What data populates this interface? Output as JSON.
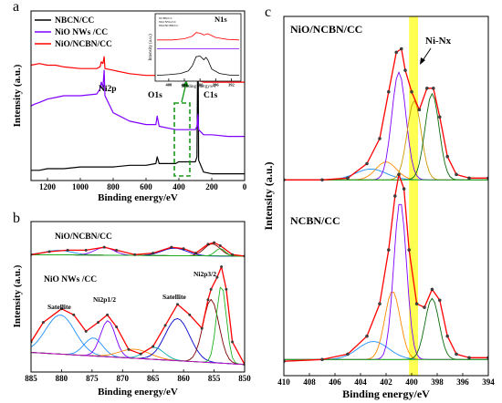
{
  "panels": {
    "a": {
      "letter": "a"
    },
    "b": {
      "letter": "b"
    },
    "c": {
      "letter": "c"
    }
  },
  "chart_data": [
    {
      "id": "a",
      "type": "line",
      "title": "",
      "xlabel": "Binding energy/eV",
      "ylabel": "Intensity (a.u.)",
      "xlim": [
        1300,
        0
      ],
      "x_ticks": [
        1200,
        1000,
        800,
        600,
        400,
        200,
        0
      ],
      "legend": {
        "placement": "top-left",
        "entries": [
          {
            "name": "NBCN/CC",
            "color": "#000000"
          },
          {
            "name": "NiO NWs /CC",
            "color": "#7f00ff"
          },
          {
            "name": "NiO/NCBN/CC",
            "color": "#ff0000"
          }
        ]
      },
      "annotations": [
        "Ni2p",
        "O1s",
        "C1s"
      ],
      "series": [
        {
          "name": "NBCN/CC",
          "color": "#000000",
          "x": [
            1300,
            1250,
            1200,
            1150,
            1100,
            1000,
            900,
            800,
            700,
            600,
            540,
            532,
            520,
            420,
            402,
            390,
            300,
            290,
            284,
            280,
            250,
            200,
            100,
            0
          ],
          "y": [
            0.06,
            0.06,
            0.07,
            0.07,
            0.07,
            0.08,
            0.08,
            0.08,
            0.09,
            0.09,
            0.1,
            0.14,
            0.1,
            0.1,
            0.11,
            0.11,
            0.11,
            0.14,
            0.96,
            0.12,
            0.05,
            0.04,
            0.04,
            0.04
          ]
        },
        {
          "name": "NiO NWs /CC",
          "color": "#7f00ff",
          "x": [
            1300,
            1280,
            1250,
            1200,
            1150,
            1100,
            1000,
            900,
            880,
            872,
            862,
            855,
            850,
            800,
            700,
            600,
            540,
            532,
            520,
            420,
            300,
            290,
            284,
            280,
            250,
            200,
            100,
            0
          ],
          "y": [
            0.44,
            0.45,
            0.46,
            0.48,
            0.49,
            0.5,
            0.5,
            0.51,
            0.54,
            0.58,
            0.55,
            0.65,
            0.5,
            0.4,
            0.35,
            0.33,
            0.33,
            0.38,
            0.32,
            0.3,
            0.3,
            0.32,
            0.39,
            0.3,
            0.27,
            0.27,
            0.26,
            0.26
          ]
        },
        {
          "name": "NiO/NCBN/CC",
          "color": "#ff0000",
          "x": [
            1300,
            1250,
            1200,
            1150,
            1100,
            1000,
            900,
            880,
            872,
            862,
            855,
            850,
            800,
            700,
            600,
            540,
            532,
            520,
            420,
            402,
            390,
            300,
            290,
            284,
            280,
            250,
            200,
            100,
            0
          ],
          "y": [
            0.68,
            0.69,
            0.68,
            0.68,
            0.67,
            0.66,
            0.66,
            0.67,
            0.7,
            0.69,
            0.73,
            0.66,
            0.65,
            0.63,
            0.62,
            0.62,
            0.65,
            0.61,
            0.6,
            0.61,
            0.6,
            0.59,
            0.6,
            0.65,
            0.59,
            0.58,
            0.58,
            0.58,
            0.58
          ]
        }
      ],
      "inset": {
        "label": "N1s",
        "xlabel": "Binding energy/eV",
        "ylabel": "Intensity (a.u.)",
        "xlim": [
          411,
          390
        ],
        "x_ticks": [
          408,
          404,
          400,
          396,
          392
        ],
        "legend": [
          "NCBN/CC",
          "NiO NWs/CC",
          "NiO/NCBN/CC"
        ],
        "series": [
          {
            "name": "NCBN/CC",
            "color": "#000000",
            "x": [
              411,
              408,
              405,
              403,
              402,
              401,
              400,
              399,
              398.5,
              398,
              397,
              395,
              392,
              390
            ],
            "y": [
              0.05,
              0.06,
              0.08,
              0.12,
              0.2,
              0.35,
              0.36,
              0.3,
              0.34,
              0.3,
              0.15,
              0.08,
              0.05,
              0.05
            ]
          },
          {
            "name": "NiO NWs/CC",
            "color": "#7f00ff",
            "x": [
              411,
              400,
              390
            ],
            "y": [
              0.48,
              0.48,
              0.48
            ]
          },
          {
            "name": "NiO/NCBN/CC",
            "color": "#ff0000",
            "x": [
              411,
              407,
              404,
              402,
              401,
              400,
              399,
              398,
              396,
              393,
              390
            ],
            "y": [
              0.62,
              0.62,
              0.64,
              0.68,
              0.74,
              0.73,
              0.7,
              0.72,
              0.66,
              0.63,
              0.62
            ]
          }
        ]
      }
    },
    {
      "id": "b",
      "type": "line",
      "title": "",
      "xlabel": "Binding energy/eV",
      "ylabel": "Intensity (a.u.)",
      "xlim": [
        885,
        850
      ],
      "x_ticks": [
        885,
        880,
        875,
        870,
        865,
        860,
        855,
        850
      ],
      "sample_labels": [
        "NiO/NCBN/CC",
        "NiO NWs /CC"
      ],
      "peak_labels": [
        "Satellite",
        "Ni2p1/2",
        "Satellite",
        "Ni2p3/2"
      ],
      "series": [
        {
          "name": "NiO/NCBN/CC",
          "color": "#ff0000",
          "x": [
            885,
            882,
            879,
            876,
            873,
            871,
            868,
            865,
            862,
            860,
            858,
            856,
            855,
            854,
            852,
            850
          ],
          "y": [
            0.78,
            0.8,
            0.81,
            0.81,
            0.83,
            0.81,
            0.78,
            0.79,
            0.83,
            0.82,
            0.79,
            0.85,
            0.86,
            0.84,
            0.78,
            0.77
          ]
        },
        {
          "name": "NiO NWs /CC",
          "color": "#ff0000",
          "x": [
            885,
            883,
            880,
            878,
            876,
            874,
            872.5,
            871,
            869,
            867,
            865,
            863,
            861,
            859,
            857,
            856,
            855.5,
            854.5,
            853.8,
            853,
            852,
            850
          ],
          "y": [
            0.2,
            0.33,
            0.42,
            0.38,
            0.27,
            0.33,
            0.38,
            0.3,
            0.15,
            0.12,
            0.17,
            0.31,
            0.45,
            0.38,
            0.29,
            0.48,
            0.55,
            0.63,
            0.7,
            0.55,
            0.2,
            0.05
          ]
        }
      ]
    },
    {
      "id": "c",
      "type": "line",
      "title": "",
      "xlabel": "Binding energy/eV",
      "ylabel": "Intensity (a.u.)",
      "xlim": [
        410,
        394
      ],
      "x_ticks": [
        410,
        408,
        406,
        404,
        402,
        400,
        398,
        396,
        394
      ],
      "sample_labels": [
        "NiO/NCBN/CC",
        "NCBN/CC"
      ],
      "annotation": "Ni-Nx",
      "highlight_band": [
        400.2,
        399.5
      ],
      "series": [
        {
          "name": "NiO/NCBN/CC",
          "color": "#ff0000",
          "x": [
            410,
            407,
            405,
            403.5,
            402.5,
            401.8,
            401.2,
            400.8,
            400.5,
            400.0,
            399.4,
            398.8,
            398.3,
            397.8,
            397.2,
            396.5,
            395.5,
            394
          ],
          "y": [
            0.545,
            0.545,
            0.55,
            0.59,
            0.66,
            0.79,
            0.9,
            0.91,
            0.85,
            0.79,
            0.74,
            0.8,
            0.8,
            0.72,
            0.61,
            0.56,
            0.55,
            0.55
          ]
        },
        {
          "name": "NCBN/CC",
          "color": "#ff0000",
          "x": [
            410,
            407,
            405,
            403.5,
            402.5,
            401.8,
            401.3,
            401.0,
            400.6,
            400.2,
            399.6,
            399.0,
            398.4,
            397.8,
            397.2,
            396.5,
            395.5,
            394
          ],
          "y": [
            0.04,
            0.045,
            0.06,
            0.11,
            0.2,
            0.35,
            0.5,
            0.56,
            0.52,
            0.35,
            0.2,
            0.19,
            0.24,
            0.21,
            0.11,
            0.06,
            0.05,
            0.05
          ]
        }
      ]
    }
  ]
}
